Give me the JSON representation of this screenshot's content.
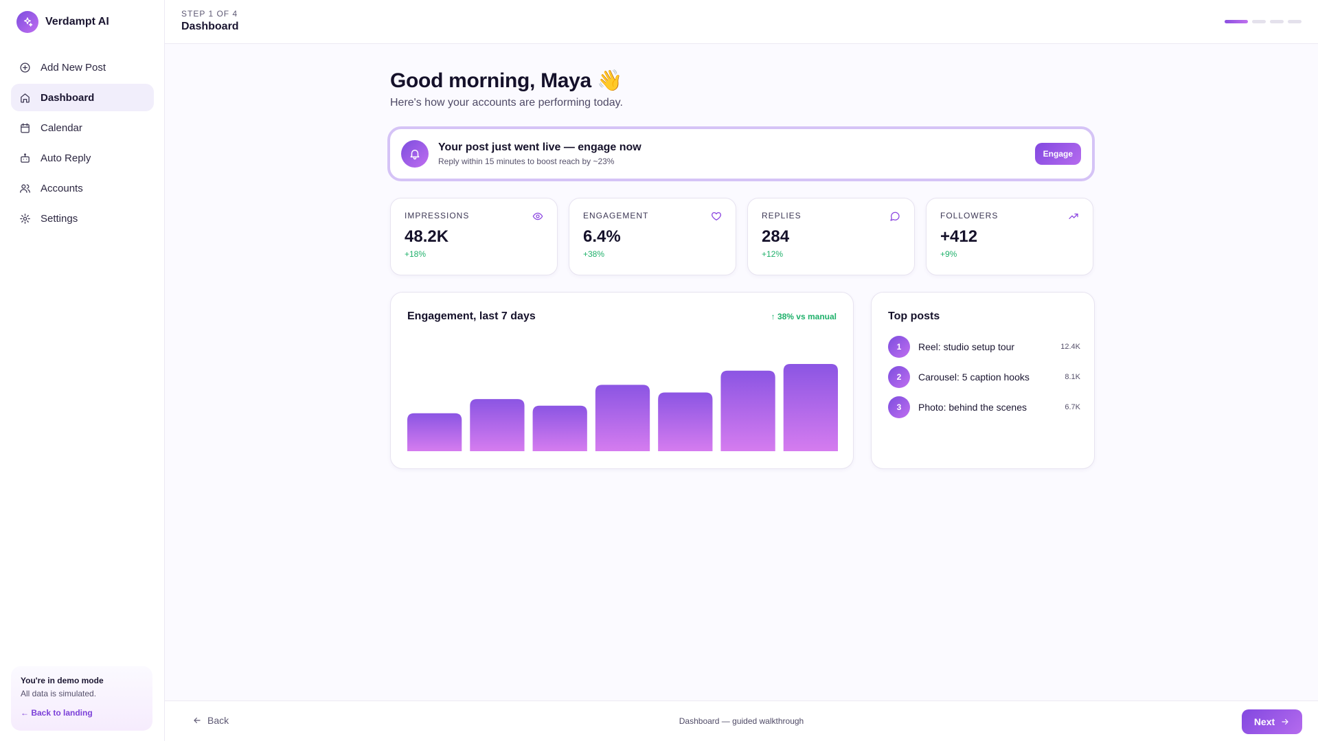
{
  "brand": {
    "name": "Verdampt AI",
    "icon": "sparkles-icon",
    "accent": "#8a4fe0"
  },
  "sidebar": {
    "items": [
      {
        "label": "Add New Post",
        "icon": "plus-circle-icon",
        "active": false
      },
      {
        "label": "Dashboard",
        "icon": "home-icon",
        "active": true
      },
      {
        "label": "Calendar",
        "icon": "calendar-icon",
        "active": false
      },
      {
        "label": "Auto Reply",
        "icon": "bot-icon",
        "active": false
      },
      {
        "label": "Accounts",
        "icon": "users-icon",
        "active": false
      },
      {
        "label": "Settings",
        "icon": "gear-icon",
        "active": false
      }
    ],
    "demo": {
      "title": "You're in demo mode",
      "subtitle": "All data is simulated.",
      "link": "← Back to landing"
    }
  },
  "header": {
    "step_label": "STEP 1 OF 4",
    "title": "Dashboard",
    "steps_total": 4,
    "current_step": 1
  },
  "main": {
    "greeting": "Good morning, Maya 👋",
    "subtitle": "Here's how your accounts are performing today.",
    "alert": {
      "title": "Your post just went live — engage now",
      "subtitle": "Reply within 15 minutes to boost reach by ~23%",
      "button": "Engage",
      "icon": "bell-icon"
    },
    "stats": [
      {
        "label": "IMPRESSIONS",
        "value": "48.2K",
        "delta": "+18%",
        "icon": "eye-icon"
      },
      {
        "label": "ENGAGEMENT",
        "value": "6.4%",
        "delta": "+38%",
        "icon": "heart-icon"
      },
      {
        "label": "REPLIES",
        "value": "284",
        "delta": "+12%",
        "icon": "message-circle-icon"
      },
      {
        "label": "FOLLOWERS",
        "value": "+412",
        "delta": "+9%",
        "icon": "trending-up-icon"
      }
    ],
    "chart_card": {
      "title": "Engagement, last 7 days",
      "badge": "↑ 38% vs manual"
    },
    "top_posts": {
      "title": "Top posts",
      "items": [
        {
          "rank": "1",
          "name": "Reel: studio setup tour",
          "count": "12.4K"
        },
        {
          "rank": "2",
          "name": "Carousel: 5 caption hooks",
          "count": "8.1K"
        },
        {
          "rank": "3",
          "name": "Photo: behind the scenes",
          "count": "6.7K"
        }
      ]
    }
  },
  "chart_data": {
    "type": "bar",
    "title": "Engagement, last 7 days",
    "series": [
      {
        "values": [
          40,
          55,
          48,
          70,
          62,
          85,
          92
        ]
      }
    ],
    "ylim": [
      0,
      100
    ],
    "grid": false,
    "colors": {
      "bar_top": "#8b55e3",
      "bar_bottom": "#d57cef"
    }
  },
  "footer": {
    "back": "Back",
    "caption": "Dashboard — guided walkthrough",
    "next": "Next"
  }
}
